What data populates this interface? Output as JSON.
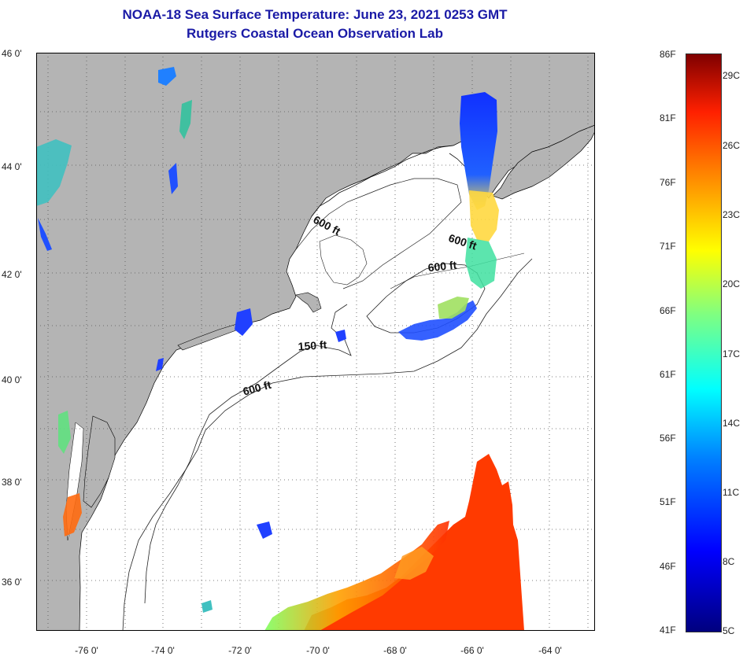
{
  "title_line1": "NOAA-18 Sea Surface Temperature:  June 23, 2021 0253 GMT",
  "title_line2": "Rutgers Coastal Ocean Observation Lab",
  "lat_labels": [
    "46 0'",
    "44 0'",
    "42 0'",
    "40 0'",
    "38 0'",
    "36 0'"
  ],
  "lon_labels": [
    "-76 0'",
    "-74 0'",
    "-72 0'",
    "-70 0'",
    "-68 0'",
    "-66 0'",
    "-64 0'"
  ],
  "contours": {
    "c1": "600 ft",
    "c2": "600 ft",
    "c3": "600 ft",
    "c4": "150 ft",
    "c5": "600 ft"
  },
  "colorbar": {
    "fahrenheit": [
      "86F",
      "81F",
      "76F",
      "71F",
      "66F",
      "61F",
      "56F",
      "51F",
      "46F",
      "41F"
    ],
    "celsius": [
      "29C",
      "26C",
      "23C",
      "20C",
      "17C",
      "14C",
      "11C",
      "8C",
      "5C"
    ]
  },
  "colors": {
    "land": "#b4b4b4",
    "water": "#ffffff",
    "title": "#1a1aa6"
  }
}
